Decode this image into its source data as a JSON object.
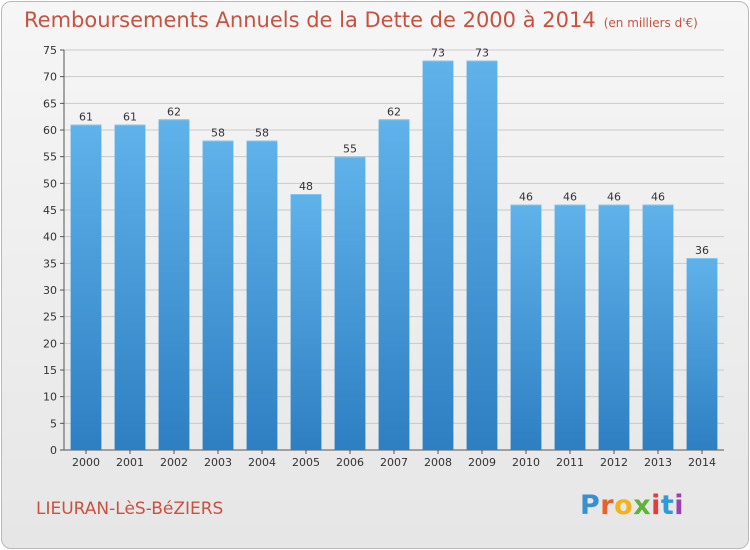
{
  "title": "Remboursements Annuels de la Dette de 2000 à 2014",
  "unit_note": "(en milliers d'€)",
  "commune": "LIEURAN-LèS-BéZIERS",
  "logo": {
    "letters": [
      "P",
      "r",
      "o",
      "x",
      "i",
      "t",
      "i"
    ],
    "colors": [
      "#3a8fd0",
      "#e8622c",
      "#f3b21b",
      "#5fb33b",
      "#e53b3b",
      "#2f9ad8",
      "#9c3fb3"
    ]
  },
  "colors": {
    "title": "#c8523f",
    "bar_light": "#5fb2ea",
    "bar_dark": "#2d7fc2",
    "grid": "#c9c9c9"
  },
  "chart_data": {
    "type": "bar",
    "categories": [
      "2000",
      "2001",
      "2002",
      "2003",
      "2004",
      "2005",
      "2006",
      "2007",
      "2008",
      "2009",
      "2010",
      "2011",
      "2012",
      "2013",
      "2014"
    ],
    "values": [
      61,
      61,
      62,
      58,
      58,
      48,
      55,
      62,
      73,
      73,
      46,
      46,
      46,
      46,
      36
    ],
    "title": "Remboursements Annuels de la Dette de 2000 à 2014",
    "xlabel": "",
    "ylabel": "",
    "ylim": [
      0,
      75
    ],
    "yticks": [
      0,
      5,
      10,
      15,
      20,
      25,
      30,
      35,
      40,
      45,
      50,
      55,
      60,
      65,
      70,
      75
    ],
    "grid": true,
    "data_labels": true
  }
}
